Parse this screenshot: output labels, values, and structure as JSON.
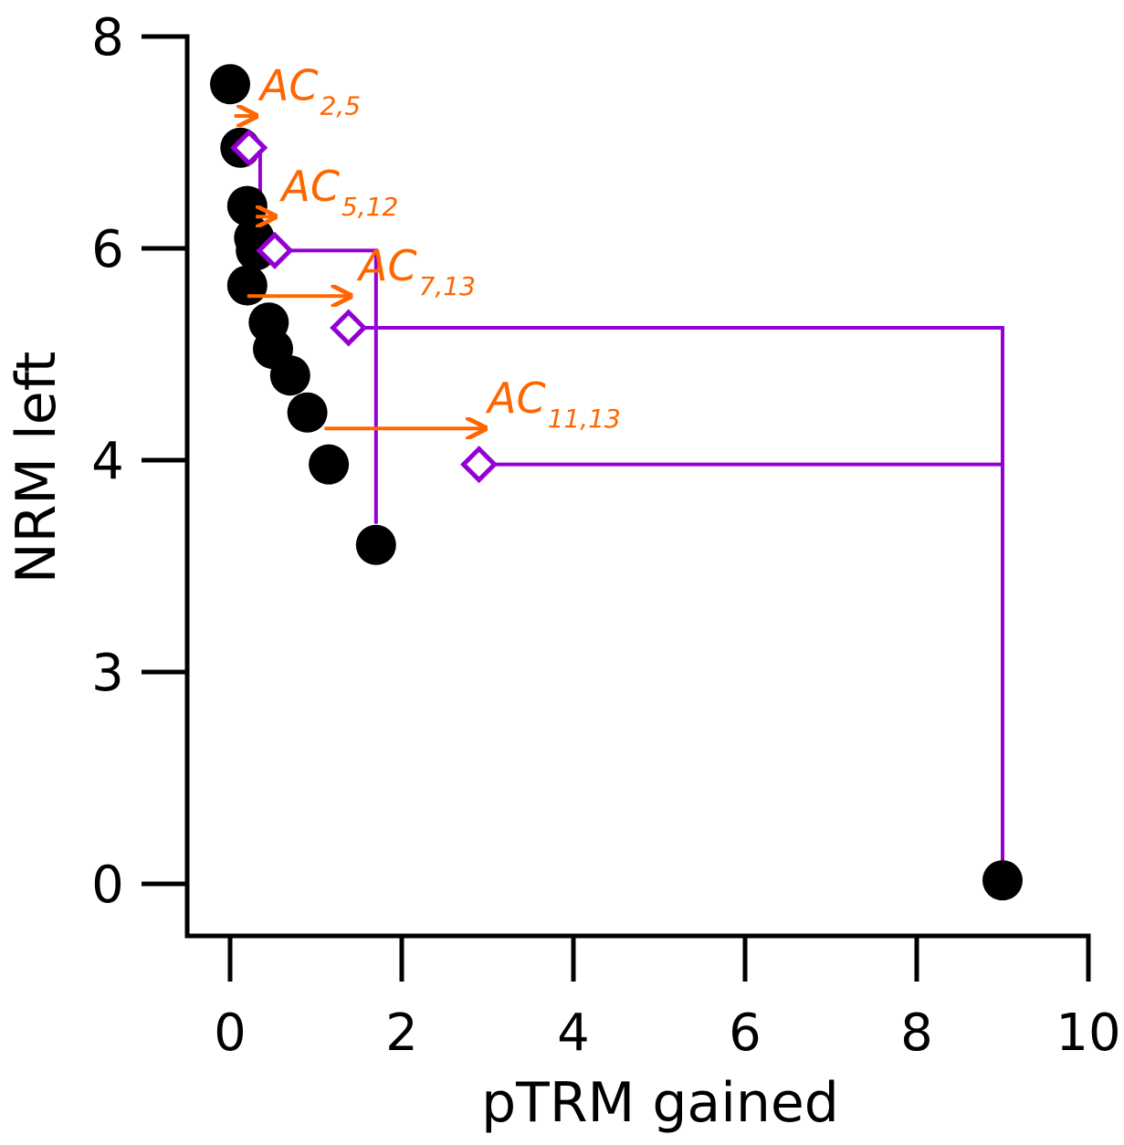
{
  "chart_data": {
    "type": "scatter",
    "title": "",
    "xlabel": "pTRM gained",
    "ylabel": "NRM left",
    "xlim": [
      0,
      10
    ],
    "x_ticks": [
      0,
      2,
      4,
      6,
      8,
      10
    ],
    "x_tick_labels": [
      "0",
      "2",
      "4",
      "6",
      "8",
      "10"
    ],
    "y_ticks": [
      0,
      3,
      4,
      6,
      8
    ],
    "y_tick_labels": [
      "0",
      "3",
      "4",
      "6",
      "8"
    ],
    "y_scale_note": "y axis is non-linear: ticks 0, 3, 4, 6, 8 are equally spaced",
    "grid": false,
    "colors": {
      "points": "#000000",
      "checks": "#9400d3",
      "ac_arrows": "#ff6600"
    },
    "series": [
      {
        "values": [
          {
            "x": 0.0,
            "y": 7.55
          },
          {
            "x": 0.12,
            "y": 6.95
          },
          {
            "x": 0.2,
            "y": 6.4
          },
          {
            "x": 0.28,
            "y": 6.1
          },
          {
            "x": 0.3,
            "y": 5.98
          },
          {
            "x": 0.2,
            "y": 5.65
          },
          {
            "x": 0.45,
            "y": 5.3
          },
          {
            "x": 0.5,
            "y": 5.05
          },
          {
            "x": 0.7,
            "y": 4.8
          },
          {
            "x": 0.9,
            "y": 4.45
          },
          {
            "x": 1.15,
            "y": 3.98
          },
          {
            "x": 1.7,
            "y": 3.6
          },
          {
            "x": 9.0,
            "y": 0.05
          }
        ]
      },
      {
        "values": [
          {
            "x": 0.22,
            "y": 6.95
          },
          {
            "x": 0.52,
            "y": 5.98
          },
          {
            "x": 1.38,
            "y": 5.25
          },
          {
            "x": 2.9,
            "y": 3.98
          }
        ]
      }
    ],
    "check_brackets": [
      {
        "from_step": 2,
        "to_step": 5,
        "check": {
          "x": 0.22,
          "y": 6.95
        },
        "corner": {
          "x": 0.35,
          "y": 6.95
        },
        "drop_to": {
          "x": 0.35,
          "y": 6.25
        }
      },
      {
        "from_step": 5,
        "to_step": 12,
        "check": {
          "x": 0.52,
          "y": 5.98
        },
        "corner": {
          "x": 1.7,
          "y": 5.98
        },
        "drop_to": {
          "x": 1.7,
          "y": 3.7
        }
      },
      {
        "from_step": 7,
        "to_step": 13,
        "check": {
          "x": 1.38,
          "y": 5.25
        },
        "corner": {
          "x": 9.0,
          "y": 5.25
        },
        "drop_to": {
          "x": 9.0,
          "y": 0.15
        }
      },
      {
        "from_step": 11,
        "to_step": 13,
        "check": {
          "x": 2.9,
          "y": 3.98
        },
        "corner": {
          "x": 9.0,
          "y": 3.98
        },
        "drop_to": null
      }
    ],
    "annotations": [
      {
        "main": "AC",
        "sub": "2,5",
        "arrow_from": {
          "x": 0.05,
          "y": 7.25
        },
        "arrow_to": {
          "x": 0.28,
          "y": 7.25
        },
        "label_at": {
          "x": 0.35,
          "y": 7.4
        }
      },
      {
        "main": "AC",
        "sub": "5,12",
        "arrow_from": {
          "x": 0.3,
          "y": 6.3
        },
        "arrow_to": {
          "x": 0.5,
          "y": 6.3
        },
        "label_at": {
          "x": 0.6,
          "y": 6.45
        }
      },
      {
        "main": "AC",
        "sub": "7,13",
        "arrow_from": {
          "x": 0.2,
          "y": 5.55
        },
        "arrow_to": {
          "x": 1.38,
          "y": 5.55
        },
        "label_at": {
          "x": 1.5,
          "y": 5.7
        }
      },
      {
        "main": "AC",
        "sub": "11,13",
        "arrow_from": {
          "x": 1.1,
          "y": 4.3
        },
        "arrow_to": {
          "x": 2.95,
          "y": 4.3
        },
        "label_at": {
          "x": 3.0,
          "y": 4.45
        }
      }
    ]
  }
}
